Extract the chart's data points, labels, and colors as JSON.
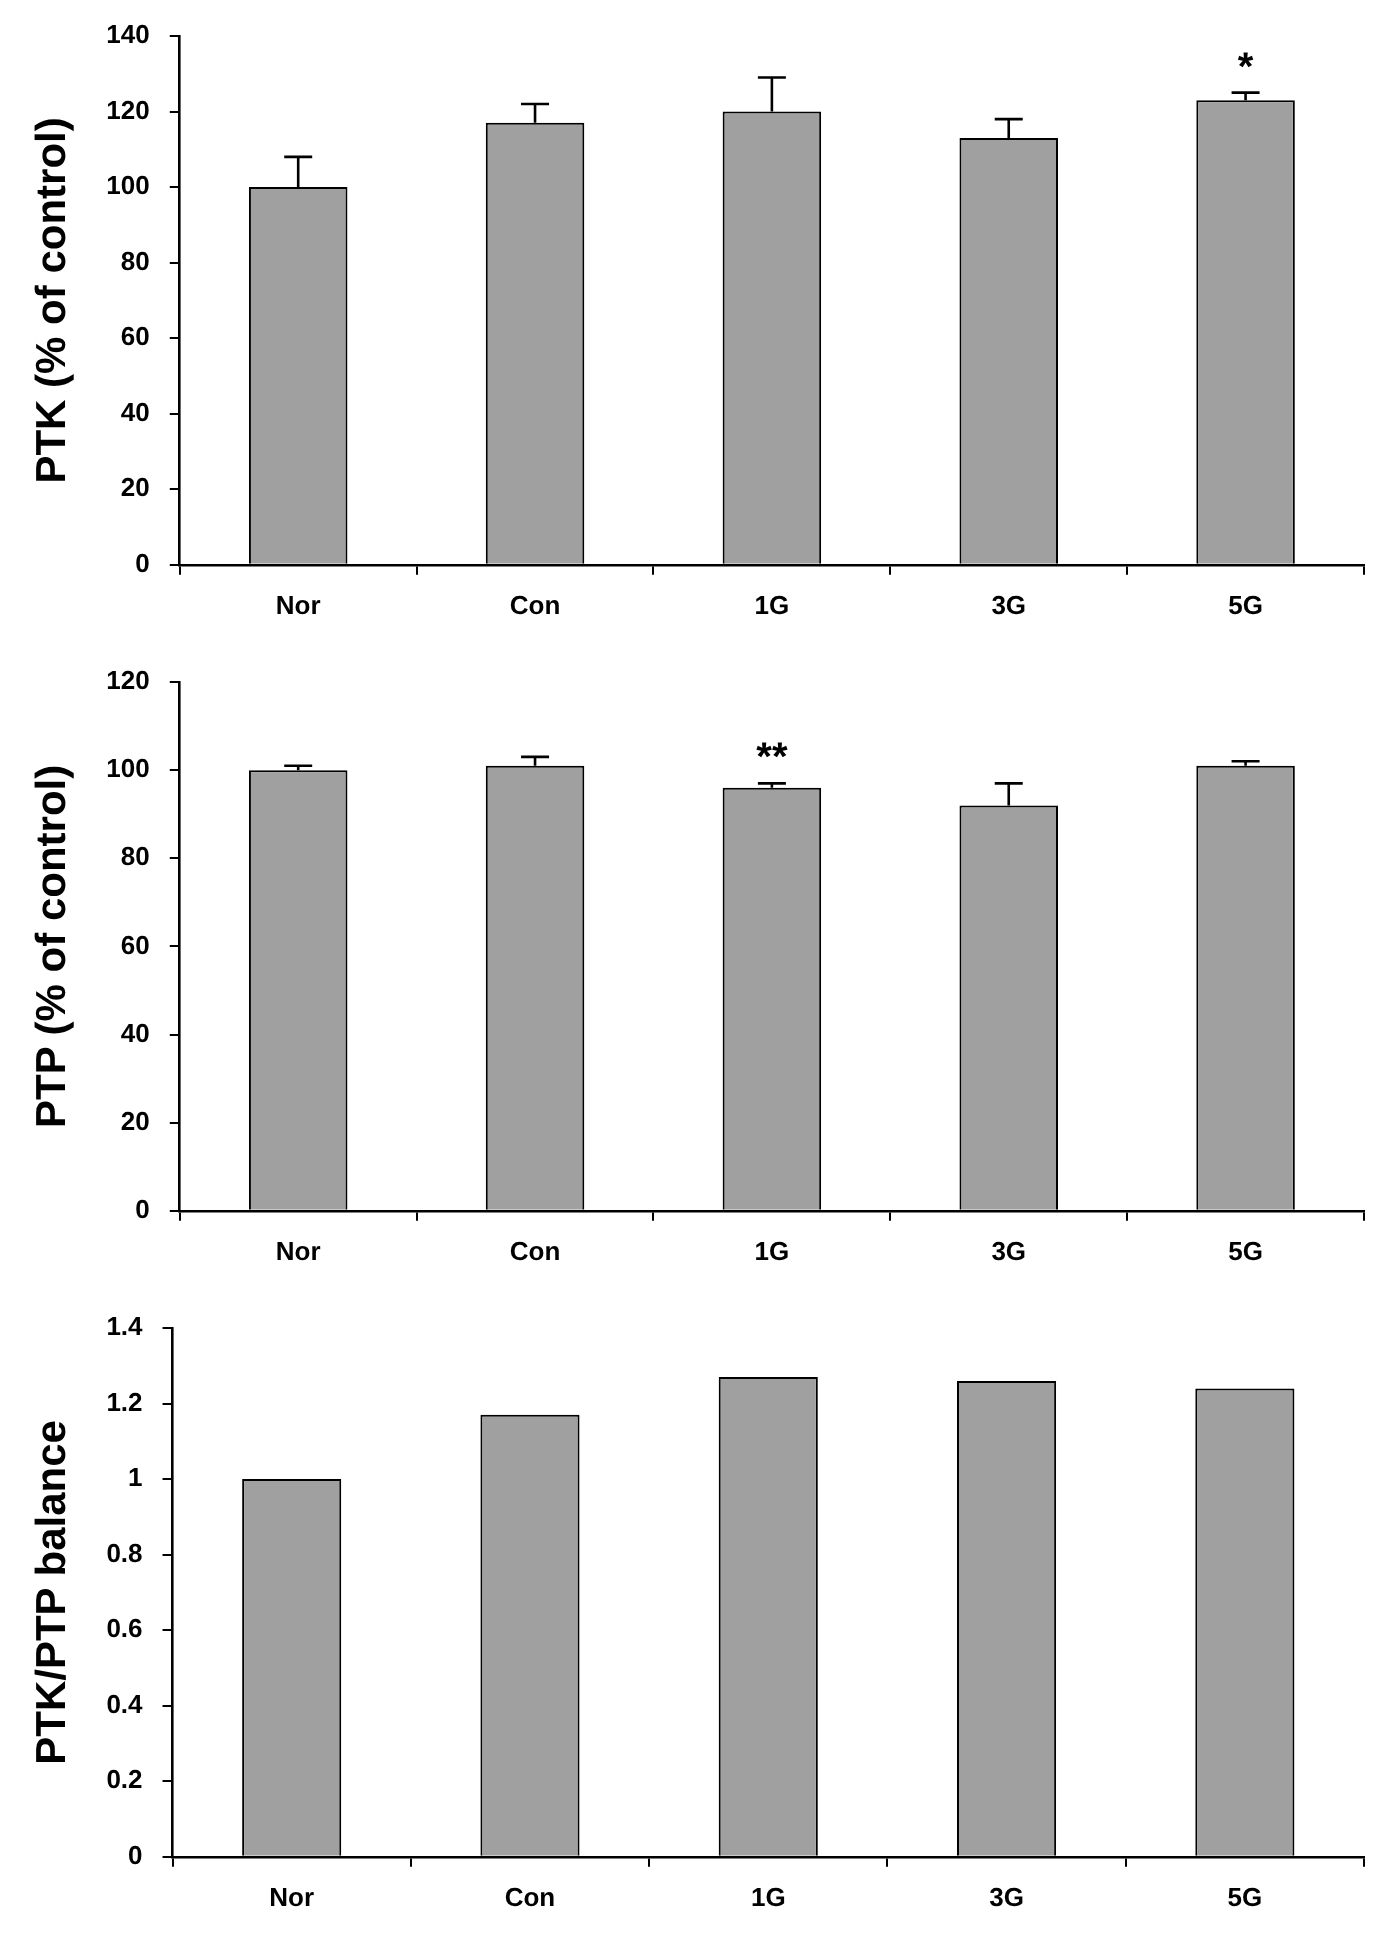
{
  "chart_data": [
    {
      "type": "bar",
      "ylabel": "PTK (% of control)",
      "categories": [
        "Nor",
        "Con",
        "1G",
        "3G",
        "5G"
      ],
      "values": [
        100,
        117,
        120,
        113,
        123
      ],
      "errors": [
        [
          100,
          108
        ],
        [
          117,
          122
        ],
        [
          120,
          129
        ],
        [
          113,
          118
        ],
        [
          123,
          125
        ]
      ],
      "color": "#a0a0a0",
      "ylim": [
        0,
        140
      ],
      "yticks": [
        0,
        20,
        40,
        60,
        80,
        100,
        120,
        140
      ],
      "annotations": [
        {
          "text": "*",
          "x": "5G",
          "y": 125
        }
      ]
    },
    {
      "type": "bar",
      "ylabel": "PTP (% of control)",
      "categories": [
        "Nor",
        "Con",
        "1G",
        "3G",
        "5G"
      ],
      "values": [
        100,
        101,
        96,
        92,
        101
      ],
      "errors": [
        [
          100,
          101
        ],
        [
          101,
          103
        ],
        [
          96,
          97
        ],
        [
          92,
          97
        ],
        [
          101,
          102
        ]
      ],
      "color": "#a0a0a0",
      "ylim": [
        0,
        120
      ],
      "yticks": [
        0,
        20,
        40,
        60,
        80,
        100,
        120
      ],
      "annotations": [
        {
          "text": "**",
          "x": "1G",
          "y": 97
        }
      ]
    },
    {
      "type": "bar",
      "ylabel": "PTK/PTP balance",
      "categories": [
        "Nor",
        "Con",
        "1G",
        "3G",
        "5G"
      ],
      "values": [
        1.0,
        1.17,
        1.27,
        1.26,
        1.24
      ],
      "color": "#a0a0a0",
      "ylim": [
        0,
        1.4
      ],
      "yticks": [
        0,
        0.2,
        0.4,
        0.6,
        0.8,
        1,
        1.2,
        1.4
      ]
    }
  ]
}
